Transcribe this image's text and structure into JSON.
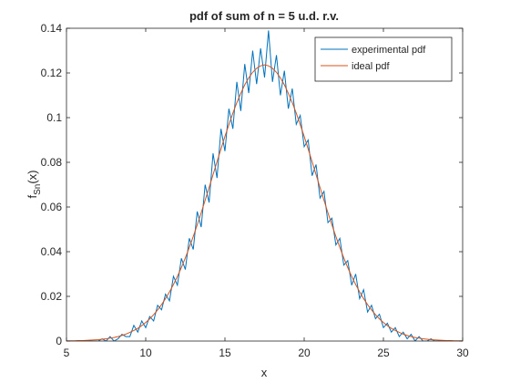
{
  "chart_data": {
    "type": "line",
    "title": "pdf of sum of n = 5 u.d. r.v.",
    "xlabel": "x",
    "ylabel": {
      "main": "f",
      "sub": "Sn",
      "tail": "(x)"
    },
    "x": [
      5,
      5.25,
      5.5,
      5.75,
      6,
      6.25,
      6.5,
      6.75,
      7,
      7.25,
      7.5,
      7.75,
      8,
      8.25,
      8.5,
      8.75,
      9,
      9.25,
      9.5,
      9.75,
      10,
      10.25,
      10.5,
      10.75,
      11,
      11.25,
      11.5,
      11.75,
      12,
      12.25,
      12.5,
      12.75,
      13,
      13.25,
      13.5,
      13.75,
      14,
      14.25,
      14.5,
      14.75,
      15,
      15.25,
      15.5,
      15.75,
      16,
      16.25,
      16.5,
      16.75,
      17,
      17.25,
      17.5,
      17.75,
      18,
      18.25,
      18.5,
      18.75,
      19,
      19.25,
      19.5,
      19.75,
      20,
      20.25,
      20.5,
      20.75,
      21,
      21.25,
      21.5,
      21.75,
      22,
      22.25,
      22.5,
      22.75,
      23,
      23.25,
      23.5,
      23.75,
      24,
      24.25,
      24.5,
      24.75,
      25,
      25.25,
      25.5,
      25.75,
      26,
      26.25,
      26.5,
      26.75,
      27,
      27.25,
      27.5,
      27.75,
      28,
      28.25,
      28.5,
      28.75,
      29,
      29.25,
      29.5,
      29.75,
      30
    ],
    "series": [
      {
        "name": "experimental pdf",
        "color": "#0072BD",
        "values": [
          0,
          0,
          0,
          0,
          0,
          0,
          0,
          0,
          0,
          0.001,
          0,
          0.002,
          0,
          0.001,
          0.003,
          0.002,
          0.002,
          0.007,
          0.004,
          0.009,
          0.006,
          0.011,
          0.009,
          0.016,
          0.014,
          0.021,
          0.018,
          0.029,
          0.025,
          0.037,
          0.032,
          0.046,
          0.041,
          0.058,
          0.051,
          0.07,
          0.062,
          0.084,
          0.073,
          0.095,
          0.085,
          0.104,
          0.095,
          0.116,
          0.103,
          0.124,
          0.111,
          0.13,
          0.115,
          0.131,
          0.118,
          0.139,
          0.116,
          0.128,
          0.11,
          0.121,
          0.104,
          0.113,
          0.097,
          0.101,
          0.087,
          0.09,
          0.074,
          0.079,
          0.064,
          0.067,
          0.053,
          0.055,
          0.043,
          0.046,
          0.034,
          0.036,
          0.025,
          0.03,
          0.019,
          0.023,
          0.013,
          0.016,
          0.01,
          0.012,
          0.006,
          0.008,
          0.004,
          0.006,
          0.002,
          0.004,
          0.001,
          0.003,
          0,
          0.002,
          0,
          0,
          0.001,
          0,
          0,
          0,
          0,
          0,
          0,
          0,
          0
        ]
      },
      {
        "name": "ideal pdf",
        "color": "#D95319",
        "values": [
          0.0001,
          0.0001,
          0.0001,
          0.0002,
          0.0002,
          0.0003,
          0.0004,
          0.0005,
          0.0006,
          0.0008,
          0.001,
          0.0013,
          0.0016,
          0.002,
          0.0025,
          0.0031,
          0.0039,
          0.0047,
          0.0057,
          0.0069,
          0.0083,
          0.0099,
          0.0118,
          0.0139,
          0.0163,
          0.019,
          0.022,
          0.0253,
          0.0289,
          0.0329,
          0.0372,
          0.0419,
          0.0468,
          0.052,
          0.0574,
          0.063,
          0.0687,
          0.0745,
          0.0803,
          0.086,
          0.0916,
          0.0969,
          0.102,
          0.1067,
          0.1109,
          0.1147,
          0.1178,
          0.1203,
          0.1221,
          0.1232,
          0.1236,
          0.1232,
          0.1221,
          0.1203,
          0.1178,
          0.1147,
          0.1109,
          0.1067,
          0.102,
          0.0969,
          0.0916,
          0.086,
          0.0803,
          0.0745,
          0.0687,
          0.063,
          0.0574,
          0.052,
          0.0468,
          0.0419,
          0.0372,
          0.0329,
          0.0289,
          0.0253,
          0.022,
          0.019,
          0.0163,
          0.0139,
          0.0118,
          0.0099,
          0.0083,
          0.0069,
          0.0057,
          0.0047,
          0.0039,
          0.0031,
          0.0025,
          0.002,
          0.0016,
          0.0013,
          0.001,
          0.0008,
          0.0006,
          0.0005,
          0.0004,
          0.0003,
          0.0002,
          0.0002,
          0.0001,
          0.0001,
          0.0001
        ]
      }
    ],
    "xlim": [
      5,
      30
    ],
    "xticks": [
      5,
      10,
      15,
      20,
      25,
      30
    ],
    "ylim": [
      0,
      0.14
    ],
    "yticks": [
      0,
      0.02,
      0.04,
      0.06,
      0.08,
      0.1,
      0.12,
      0.14
    ],
    "legend": "top-right",
    "grid": false
  }
}
